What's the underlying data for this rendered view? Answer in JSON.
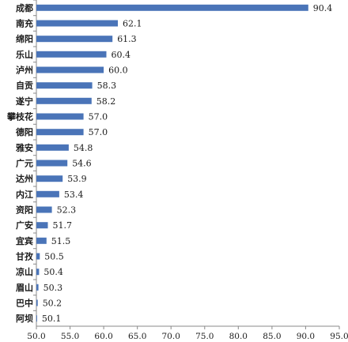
{
  "chart_data": {
    "type": "bar",
    "orientation": "horizontal",
    "title": "",
    "xlabel": "",
    "ylabel": "",
    "categories": [
      "成都",
      "南充",
      "绵阳",
      "乐山",
      "泸州",
      "自贡",
      "遂宁",
      "攀枝花",
      "德阳",
      "雅安",
      "广元",
      "达州",
      "内江",
      "资阳",
      "广安",
      "宜宾",
      "甘孜",
      "凉山",
      "眉山",
      "巴中",
      "阿坝"
    ],
    "values": [
      90.4,
      62.1,
      61.3,
      60.4,
      60.0,
      58.3,
      58.2,
      57.0,
      57.0,
      54.8,
      54.6,
      53.9,
      53.4,
      52.3,
      51.7,
      51.5,
      50.5,
      50.4,
      50.3,
      50.2,
      50.1
    ],
    "value_labels": [
      "90.4",
      "62.1",
      "61.3",
      "60.4",
      "60.0",
      "58.3",
      "58.2",
      "57.0",
      "57.0",
      "54.8",
      "54.6",
      "53.9",
      "53.4",
      "52.3",
      "51.7",
      "51.5",
      "50.5",
      "50.4",
      "50.3",
      "50.2",
      "50.1"
    ],
    "xlim": [
      50,
      95
    ],
    "xticks": [
      "50.0",
      "55.0",
      "60.0",
      "65.0",
      "70.0",
      "75.0",
      "80.0",
      "85.0",
      "90.0",
      "95.0"
    ],
    "grid": false,
    "legend": "none",
    "bar_color": "#4a74b8",
    "axis_color": "#888888"
  }
}
